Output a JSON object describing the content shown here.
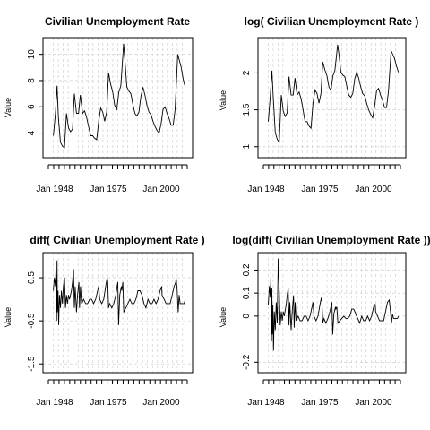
{
  "chart_data": [
    {
      "type": "line",
      "title": "Civilian Unemployment Rate",
      "xlabel": "",
      "ylabel": "Value",
      "x_ticks": [
        "Jan 1948",
        "Jan 1975",
        "Jan 2000"
      ],
      "y_ticks": [
        4,
        6,
        8,
        10
      ],
      "ylim": [
        2.4,
        11.0
      ],
      "xlim": [
        1945.5,
        2014.5
      ],
      "grid": true,
      "series": [
        {
          "x": [
            1948,
            1949,
            1949.8,
            1950.5,
            1951.5,
            1952.5,
            1953.5,
            1954.5,
            1955.5,
            1956.5,
            1957.5,
            1958.4,
            1959.5,
            1960.5,
            1961.4,
            1962.5,
            1963.5,
            1964.5,
            1965.5,
            1966.5,
            1967.5,
            1968.5,
            1969.5,
            1970.5,
            1971.5,
            1972.5,
            1973.5,
            1974.5,
            1975.4,
            1976.5,
            1977.5,
            1978.5,
            1979.5,
            1980.5,
            1981.5,
            1982.9,
            1983.5,
            1984.5,
            1985.5,
            1986.5,
            1987.5,
            1988.5,
            1989.5,
            1990.5,
            1991.5,
            1992.5,
            1993.5,
            1994.5,
            1995.5,
            1996.5,
            1997.5,
            1998.5,
            1999.5,
            2000.5,
            2001.5,
            2002.5,
            2003.5,
            2004.5,
            2005.5,
            2006.5,
            2007.5,
            2008.5,
            2009.8,
            2010.5,
            2011.5,
            2012.5,
            2013.5
          ],
          "values": [
            3.8,
            5.5,
            7.6,
            5.2,
            3.3,
            3.0,
            2.9,
            5.5,
            4.4,
            4.1,
            4.3,
            7.0,
            5.5,
            5.5,
            6.9,
            5.5,
            5.7,
            5.2,
            4.5,
            3.8,
            3.8,
            3.6,
            3.5,
            4.9,
            5.9,
            5.6,
            4.9,
            5.6,
            8.6,
            7.7,
            7.1,
            6.1,
            5.8,
            7.1,
            7.6,
            10.8,
            9.6,
            7.5,
            7.2,
            7.0,
            6.2,
            5.5,
            5.3,
            5.6,
            6.8,
            7.5,
            6.9,
            6.1,
            5.6,
            5.4,
            4.9,
            4.5,
            4.2,
            4.0,
            4.7,
            5.8,
            6.0,
            5.5,
            5.1,
            4.6,
            4.6,
            5.8,
            10.0,
            9.6,
            9.0,
            8.1,
            7.5
          ]
        }
      ]
    },
    {
      "type": "line",
      "title": "log( Civilian Unemployment Rate )",
      "xlabel": "",
      "ylabel": "Value",
      "x_ticks": [
        "Jan 1948",
        "Jan 1975",
        "Jan 2000"
      ],
      "y_ticks": [
        1.0,
        1.5,
        2.0
      ],
      "ylim": [
        0.9,
        2.43
      ],
      "xlim": [
        1945.5,
        2014.5
      ],
      "grid": true,
      "series": [
        {
          "x": [
            1948,
            1949,
            1949.8,
            1950.5,
            1951.5,
            1952.5,
            1953.5,
            1954.5,
            1955.5,
            1956.5,
            1957.5,
            1958.4,
            1959.5,
            1960.5,
            1961.4,
            1962.5,
            1963.5,
            1964.5,
            1965.5,
            1966.5,
            1967.5,
            1968.5,
            1969.5,
            1970.5,
            1971.5,
            1972.5,
            1973.5,
            1974.5,
            1975.4,
            1976.5,
            1977.5,
            1978.5,
            1979.5,
            1980.5,
            1981.5,
            1982.9,
            1983.5,
            1984.5,
            1985.5,
            1986.5,
            1987.5,
            1988.5,
            1989.5,
            1990.5,
            1991.5,
            1992.5,
            1993.5,
            1994.5,
            1995.5,
            1996.5,
            1997.5,
            1998.5,
            1999.5,
            2000.5,
            2001.5,
            2002.5,
            2003.5,
            2004.5,
            2005.5,
            2006.5,
            2007.5,
            2008.5,
            2009.8,
            2010.5,
            2011.5,
            2012.5,
            2013.5
          ],
          "values": [
            1.34,
            1.7,
            2.03,
            1.65,
            1.19,
            1.1,
            1.06,
            1.7,
            1.48,
            1.41,
            1.46,
            1.95,
            1.7,
            1.7,
            1.93,
            1.7,
            1.74,
            1.65,
            1.5,
            1.34,
            1.34,
            1.28,
            1.25,
            1.59,
            1.77,
            1.72,
            1.59,
            1.72,
            2.15,
            2.04,
            1.96,
            1.81,
            1.76,
            1.96,
            2.03,
            2.38,
            2.26,
            2.01,
            1.97,
            1.95,
            1.82,
            1.7,
            1.67,
            1.72,
            1.92,
            2.01,
            1.93,
            1.81,
            1.72,
            1.69,
            1.59,
            1.5,
            1.44,
            1.39,
            1.55,
            1.76,
            1.79,
            1.7,
            1.63,
            1.53,
            1.53,
            1.76,
            2.3,
            2.26,
            2.2,
            2.09,
            2.01
          ]
        }
      ]
    },
    {
      "type": "line",
      "title": "diff( Civilian Unemployment Rate )",
      "xlabel": "",
      "ylabel": "Value",
      "x_ticks": [
        "Jan 1948",
        "Jan 1975",
        "Jan 2000"
      ],
      "y_ticks": [
        -1.5,
        -0.5,
        0.5
      ],
      "ylim": [
        -1.62,
        1.0
      ],
      "xlim": [
        1945.5,
        2014.5
      ],
      "grid": true,
      "series": [
        {
          "x": [
            1948,
            1948.5,
            1949,
            1949.3,
            1949.6,
            1949.8,
            1950,
            1950.3,
            1950.6,
            1951,
            1951.5,
            1952,
            1952.5,
            1953,
            1953.5,
            1954,
            1954.5,
            1955,
            1955.5,
            1956,
            1957,
            1957.5,
            1958,
            1958.4,
            1958.8,
            1959.5,
            1960,
            1960.7,
            1961,
            1961.5,
            1962,
            1963,
            1964,
            1965,
            1966,
            1967,
            1968,
            1969,
            1970,
            1970.5,
            1971,
            1972,
            1973,
            1974,
            1974.7,
            1975,
            1975.4,
            1976,
            1977,
            1978,
            1979,
            1980,
            1980.4,
            1981,
            1981.8,
            1982,
            1982.5,
            1983,
            1984,
            1985,
            1986,
            1987,
            1988,
            1989,
            1990,
            1991,
            1992,
            1993,
            1994,
            1995,
            1996,
            1997,
            1998,
            1999,
            2000,
            2001,
            2001.8,
            2002,
            2003,
            2004,
            2005,
            2006,
            2007,
            2008,
            2008.8,
            2009,
            2009.5,
            2010,
            2010.5,
            2011,
            2012,
            2013,
            2013.5
          ],
          "values": [
            0.2,
            0.5,
            0.3,
            0.7,
            -0.5,
            0.9,
            -0.3,
            0.2,
            -0.6,
            0.1,
            -0.2,
            0.2,
            -0.1,
            0.3,
            0.5,
            -0.2,
            0.1,
            -0.1,
            0.1,
            0.0,
            0.2,
            0.4,
            0.7,
            -0.2,
            0.3,
            -0.3,
            0.1,
            0.4,
            -0.2,
            0.3,
            -0.1,
            0.0,
            -0.1,
            -0.1,
            0.0,
            0.0,
            -0.1,
            0.0,
            0.2,
            0.3,
            0.0,
            -0.1,
            0.0,
            0.3,
            0.5,
            0.4,
            -0.2,
            -0.1,
            -0.2,
            -0.1,
            0.1,
            0.4,
            -0.6,
            0.1,
            0.3,
            0.2,
            0.4,
            -0.3,
            -0.2,
            -0.1,
            0.0,
            -0.1,
            -0.1,
            0.0,
            0.2,
            0.2,
            0.1,
            -0.1,
            -0.2,
            0.0,
            -0.1,
            -0.1,
            0.0,
            -0.1,
            0.0,
            0.2,
            0.3,
            0.1,
            0.0,
            -0.1,
            -0.1,
            -0.1,
            0.1,
            0.3,
            0.4,
            0.5,
            0.2,
            -0.3,
            0.1,
            -0.1,
            -0.1,
            -0.1,
            0.0
          ]
        }
      ]
    },
    {
      "type": "line",
      "title": "log(diff( Civilian Unemployment Rate ))",
      "xlabel": "",
      "ylabel": "Value",
      "x_ticks": [
        "Jan 1948",
        "Jan 1975",
        "Jan 2000"
      ],
      "y_ticks": [
        -0.2,
        0.0,
        0.1,
        0.2
      ],
      "ylim": [
        -0.23,
        0.26
      ],
      "xlim": [
        1945.5,
        2014.5
      ],
      "grid": true,
      "series": [
        {
          "x": [
            1948,
            1948.5,
            1949,
            1949.3,
            1949.6,
            1949.8,
            1950,
            1950.3,
            1950.6,
            1951,
            1951.5,
            1952,
            1952.5,
            1953,
            1953.5,
            1954,
            1954.5,
            1955,
            1955.5,
            1956,
            1957,
            1957.5,
            1958,
            1958.4,
            1958.8,
            1959.5,
            1960,
            1960.7,
            1961,
            1961.5,
            1962,
            1963,
            1964,
            1965,
            1966,
            1967,
            1968,
            1969,
            1970,
            1970.5,
            1971,
            1972,
            1973,
            1974,
            1974.7,
            1975,
            1975.4,
            1976,
            1977,
            1978,
            1979,
            1980,
            1980.4,
            1981,
            1981.8,
            1982,
            1982.5,
            1983,
            1984,
            1985,
            1986,
            1987,
            1988,
            1989,
            1990,
            1991,
            1992,
            1993,
            1994,
            1995,
            1996,
            1997,
            1998,
            1999,
            2000,
            2001,
            2001.8,
            2002,
            2003,
            2004,
            2005,
            2006,
            2007,
            2008,
            2008.8,
            2009,
            2009.5,
            2010,
            2010.5,
            2011,
            2012,
            2013,
            2013.5
          ],
          "values": [
            0.05,
            0.13,
            0.08,
            0.17,
            -0.11,
            0.12,
            -0.08,
            0.05,
            -0.15,
            0.02,
            -0.06,
            0.06,
            -0.03,
            0.25,
            0.11,
            -0.04,
            0.02,
            -0.02,
            0.02,
            0.0,
            0.05,
            0.09,
            0.12,
            -0.04,
            0.06,
            -0.06,
            0.02,
            0.09,
            -0.05,
            0.06,
            -0.02,
            0.0,
            -0.02,
            -0.02,
            0.0,
            0.0,
            -0.02,
            0.0,
            0.04,
            0.06,
            0.0,
            -0.02,
            0.0,
            0.05,
            0.08,
            0.06,
            -0.03,
            -0.01,
            -0.03,
            -0.01,
            0.02,
            0.06,
            -0.08,
            0.01,
            0.04,
            0.03,
            0.04,
            -0.03,
            -0.02,
            -0.01,
            0.0,
            -0.01,
            -0.01,
            0.0,
            0.03,
            0.03,
            0.01,
            -0.01,
            -0.03,
            0.0,
            -0.02,
            -0.02,
            0.0,
            -0.02,
            0.0,
            0.04,
            0.05,
            0.02,
            0.0,
            -0.02,
            -0.02,
            -0.02,
            0.02,
            0.06,
            0.07,
            0.06,
            0.02,
            -0.03,
            0.01,
            -0.01,
            -0.01,
            -0.01,
            0.0
          ]
        }
      ]
    }
  ]
}
